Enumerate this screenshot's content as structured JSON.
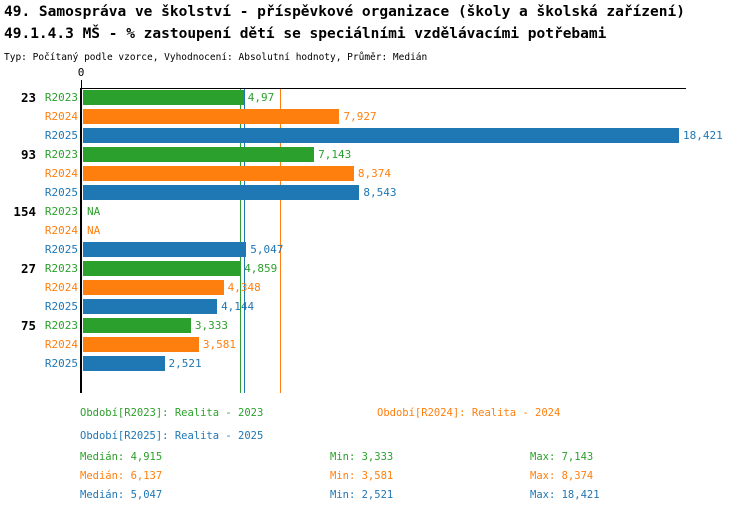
{
  "header": {
    "title": "49. Samospráva ve školství - příspěvkové organizace (školy a školská zařízení)",
    "subtitle": "49.1.4.3 MŠ - % zastoupení dětí se speciálními vzdělávacími potřebami",
    "meta": "Typ: Počítaný podle vzorce, Vyhodnocení: Absolutní hodnoty, Průměr: Medián"
  },
  "chart_data": {
    "type": "bar",
    "orientation": "horizontal",
    "axis": {
      "zero_label": "0",
      "max": 18.7,
      "grid": false
    },
    "series_colors": {
      "R2023": "#2ca02c",
      "R2024": "#ff7f0e",
      "R2025": "#1f77b4"
    },
    "groups": [
      {
        "label": "23",
        "bars": [
          {
            "series": "R2023",
            "value": 4.97,
            "label": "4,97"
          },
          {
            "series": "R2024",
            "value": 7.927,
            "label": "7,927"
          },
          {
            "series": "R2025",
            "value": 18.421,
            "label": "18,421"
          }
        ]
      },
      {
        "label": "93",
        "bars": [
          {
            "series": "R2023",
            "value": 7.143,
            "label": "7,143"
          },
          {
            "series": "R2024",
            "value": 8.374,
            "label": "8,374"
          },
          {
            "series": "R2025",
            "value": 8.543,
            "label": "8,543"
          }
        ]
      },
      {
        "label": "154",
        "bars": [
          {
            "series": "R2023",
            "value": null,
            "label": "NA"
          },
          {
            "series": "R2024",
            "value": null,
            "label": "NA"
          },
          {
            "series": "R2025",
            "value": 5.047,
            "label": "5,047"
          }
        ]
      },
      {
        "label": "27",
        "bars": [
          {
            "series": "R2023",
            "value": 4.859,
            "label": "4,859"
          },
          {
            "series": "R2024",
            "value": 4.348,
            "label": "4,348"
          },
          {
            "series": "R2025",
            "value": 4.144,
            "label": "4,144"
          }
        ]
      },
      {
        "label": "75",
        "bars": [
          {
            "series": "R2023",
            "value": 3.333,
            "label": "3,333"
          },
          {
            "series": "R2024",
            "value": 3.581,
            "label": "3,581"
          },
          {
            "series": "R2025",
            "value": 2.521,
            "label": "2,521"
          }
        ]
      }
    ],
    "reference_lines": [
      {
        "series": "R2023",
        "value": 4.915
      },
      {
        "series": "R2025",
        "value": 5.047
      },
      {
        "series": "R2024",
        "value": 6.137
      }
    ]
  },
  "legend": {
    "items": [
      {
        "series": "R2023",
        "label": "Období[R2023]: Realita - 2023"
      },
      {
        "series": "R2024",
        "label": "Období[R2024]: Realita - 2024"
      },
      {
        "series": "R2025",
        "label": "Období[R2025]: Realita - 2025"
      }
    ]
  },
  "stats": [
    {
      "series": "R2023",
      "median": "Medián: 4,915",
      "min": "Min: 3,333",
      "max": "Max: 7,143"
    },
    {
      "series": "R2024",
      "median": "Medián: 6,137",
      "min": "Min: 3,581",
      "max": "Max: 8,374"
    },
    {
      "series": "R2025",
      "median": "Medián: 5,047",
      "min": "Min: 2,521",
      "max": "Max: 18,421"
    }
  ]
}
